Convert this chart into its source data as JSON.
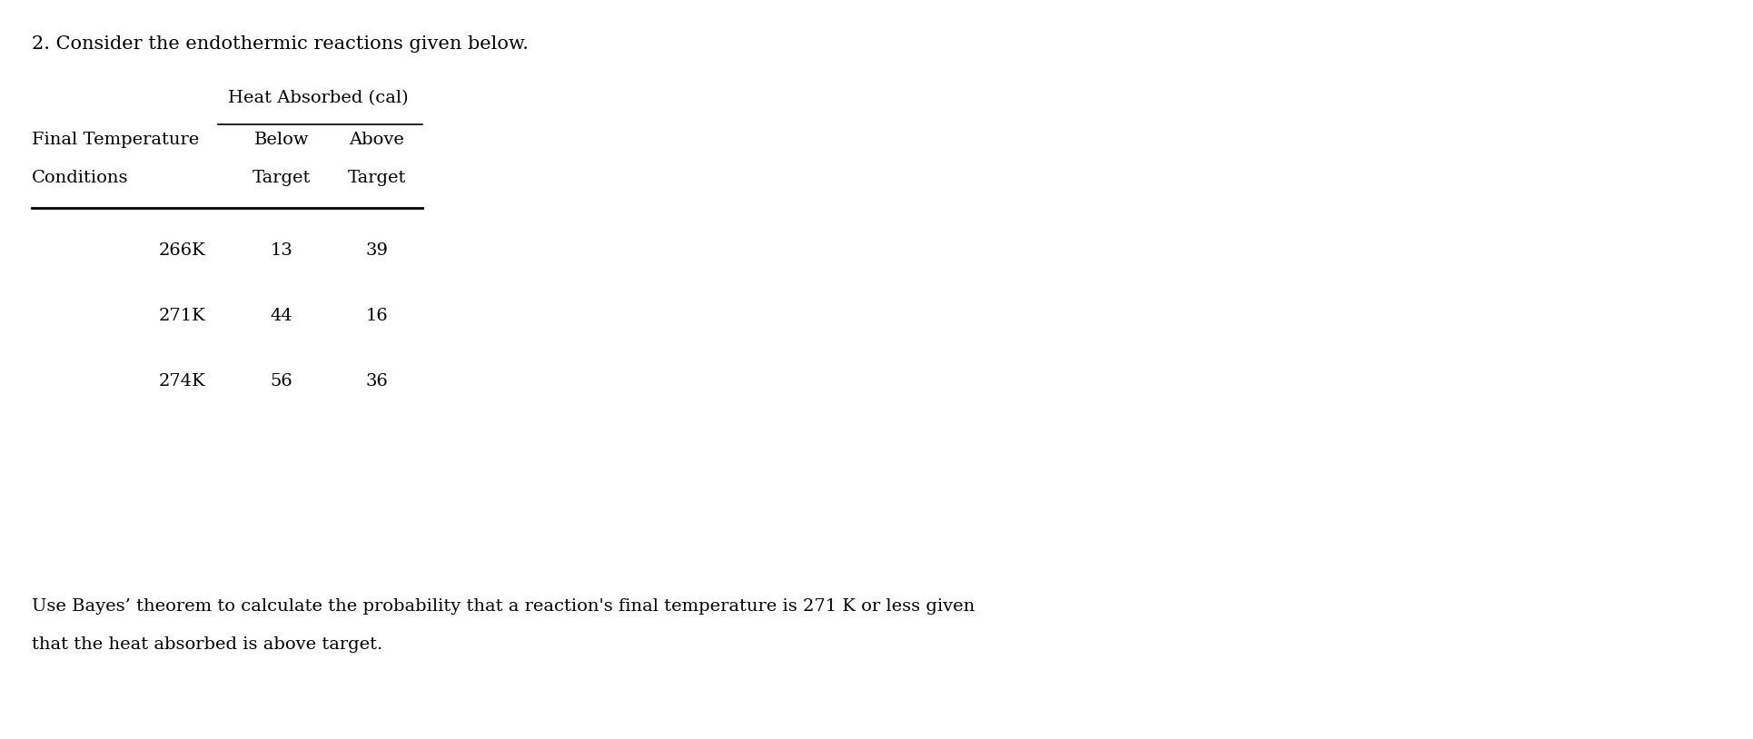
{
  "title": "2. Consider the endothermic reactions given below.",
  "group_header": "Heat Absorbed (cal)",
  "col1_header_line1": "Final Temperature",
  "col1_header_line2": "Conditions",
  "col2_header_line1": "Below",
  "col2_header_line2": "Target",
  "col3_header_line1": "Above",
  "col3_header_line2": "Target",
  "rows": [
    [
      "266K",
      "13",
      "39"
    ],
    [
      "271K",
      "44",
      "16"
    ],
    [
      "274K",
      "56",
      "36"
    ]
  ],
  "footer_line1": "Use Bayes’ theorem to calculate the probability that a reaction's final temperature is 271 K or less given",
  "footer_line2": "that the heat absorbed is above target.",
  "bg_color": "#ffffff",
  "text_color": "#000000",
  "font_size_title": 15,
  "font_size_header": 14,
  "font_size_body": 14,
  "font_size_footer": 14,
  "fig_width": 19.3,
  "fig_height": 8.14,
  "dpi": 100
}
